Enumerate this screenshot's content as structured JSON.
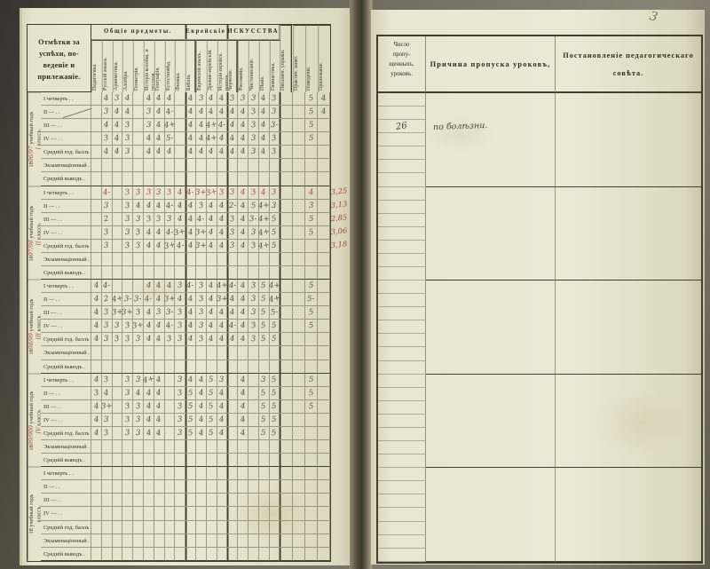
{
  "left": {
    "title": "Отмѣтки за успѣхи, по-\nведеніе и прилежаніе.",
    "groups": [
      {
        "label": "Общіе предметы.",
        "span": 9
      },
      {
        "label": "Еврейскіе предм.",
        "span": 4
      },
      {
        "label": "ИСКУССТВА.",
        "span": 5
      }
    ],
    "columns": [
      "Педагогика.",
      "Русскій языкъ.",
      "Ариѳметика.",
      "Алгебра.",
      "Геометрія.",
      "Исторія всеобщ. и русская.",
      "Географія.",
      "Естествовѣд.",
      "Физика.",
      "Библія.",
      "Еврейскій языкъ.",
      "Древне-еврейскій.",
      "Исторія еврейск. народа.",
      "Черченіе.",
      "Рисованіе.",
      "Чистописаніе.",
      "Пѣніе.",
      "Гимнастика.",
      "Письмен. упражн.",
      "Практич. занят.",
      "Поведеніе.",
      "Прилежаніе."
    ],
    "row_labels": [
      "I четверть .  .",
      "II  —  .  .",
      "III  —  .  .",
      "IV  —  .  .",
      "Средній год. баллъ .",
      "Экзаменаціонный .",
      "Средній выводъ ."
    ],
    "year_prefix": "18",
    "year_suffix": " учебный годъ",
    "class_suffix": " классъ.",
    "blocks": [
      {
        "year": "96/97",
        "cls": "I",
        "red_rows": [],
        "rows": [
          [
            "",
            "4",
            "3",
            "4",
            "",
            "4",
            "4",
            "4",
            "",
            "4",
            "3",
            "4",
            "4",
            "3",
            "3",
            "3",
            "4",
            "3",
            "",
            "",
            "5",
            "4"
          ],
          [
            "",
            "3",
            "4",
            "4",
            "",
            "3",
            "4",
            "4-",
            "",
            "4",
            "4",
            "4",
            "4",
            "4",
            "4",
            "3",
            "4",
            "3",
            "",
            "",
            "5",
            "4"
          ],
          [
            "",
            "4",
            "4",
            "3",
            "",
            "3",
            "4",
            "4+",
            "",
            "4",
            "4",
            "4+",
            "4-",
            "4",
            "4",
            "3",
            "4",
            "3-",
            "",
            "",
            "5",
            ""
          ],
          [
            "",
            "3",
            "4",
            "3",
            "",
            "4",
            "4",
            "5-",
            "",
            "4",
            "4",
            "4+",
            "4",
            "4",
            "4",
            "3",
            "4",
            "3",
            "",
            "",
            "5",
            ""
          ],
          [
            "",
            "4",
            "4",
            "3",
            "",
            "4",
            "4",
            "4",
            "",
            "4",
            "4",
            "4",
            "4",
            "4",
            "4",
            "3",
            "4",
            "3",
            "",
            "",
            "",
            ""
          ]
        ]
      },
      {
        "year": "97/98",
        "cls": "II",
        "red_rows": [
          0
        ],
        "rows": [
          [
            "",
            "4-",
            "",
            "3",
            "3",
            "3",
            "3",
            "3",
            "4",
            "4-",
            "3+",
            "3+",
            "3",
            "3",
            "4",
            "3",
            "4",
            "3",
            "",
            "",
            "4",
            ""
          ],
          [
            "",
            "3",
            "",
            "3",
            "4",
            "4",
            "4",
            "4-",
            "4",
            "4",
            "3",
            "4",
            "4",
            "2-",
            "4",
            "5",
            "4+",
            "3",
            "",
            "",
            "3",
            ""
          ],
          [
            "",
            "2",
            "",
            "3",
            "3",
            "3",
            "3",
            "3",
            "4",
            "4",
            "4-",
            "4",
            "4",
            "3",
            "4",
            "3-",
            "4+",
            "5",
            "",
            "",
            "5",
            ""
          ],
          [
            "",
            "3",
            "",
            "3",
            "3",
            "4",
            "4",
            "4-",
            "3+",
            "4",
            "3+",
            "4",
            "4",
            "3",
            "4",
            "3",
            "4+",
            "5",
            "",
            "",
            "5",
            ""
          ],
          [
            "",
            "3",
            "",
            "3",
            "3",
            "4",
            "4",
            "3+",
            "4-",
            "4",
            "3+",
            "4",
            "4",
            "3",
            "4",
            "3",
            "4+",
            "5",
            "",
            "",
            "",
            ""
          ]
        ]
      },
      {
        "year": "98/99",
        "cls": "III",
        "red_rows": [],
        "rows": [
          [
            "4",
            "4-",
            "",
            "",
            "",
            "4",
            "4",
            "4",
            "3",
            "4-",
            "3",
            "4",
            "4+",
            "4-",
            "4",
            "3",
            "5",
            "4+",
            "",
            "",
            "5",
            ""
          ],
          [
            "4",
            "2",
            "4+",
            "3-",
            "3-",
            "4-",
            "4",
            "3+",
            "4",
            "4",
            "3",
            "4",
            "3+",
            "4",
            "4",
            "3",
            "5",
            "4+",
            "",
            "",
            "5-",
            ""
          ],
          [
            "4",
            "3",
            "3+",
            "3+",
            "3",
            "4",
            "3",
            "3-",
            "3",
            "4",
            "3",
            "4",
            "4",
            "4",
            "4",
            "3",
            "5",
            "5-",
            "",
            "",
            "5",
            ""
          ],
          [
            "4",
            "3",
            "3",
            "3",
            "3+",
            "4",
            "4",
            "4-",
            "3",
            "4",
            "3",
            "4",
            "4",
            "4-",
            "4",
            "3",
            "5",
            "5",
            "",
            "",
            "5",
            ""
          ],
          [
            "4",
            "3",
            "3",
            "3",
            "3",
            "4",
            "4",
            "3",
            "3",
            "4",
            "3",
            "4",
            "4",
            "4",
            "4",
            "3",
            "5",
            "5",
            "",
            "",
            "",
            ""
          ]
        ]
      },
      {
        "year": "99/900",
        "cls": "IV",
        "red_rows": [],
        "rows": [
          [
            "4",
            "3",
            "",
            "3",
            "3",
            "4+",
            "4",
            "",
            "3",
            "4",
            "4",
            "5",
            "3",
            "",
            "4",
            "",
            "3",
            "5",
            "",
            "",
            "5",
            ""
          ],
          [
            "3",
            "4",
            "",
            "3",
            "4",
            "4",
            "4",
            "",
            "3",
            "5",
            "4",
            "5",
            "4",
            "",
            "4",
            "",
            "5",
            "5",
            "",
            "",
            "5",
            ""
          ],
          [
            "4",
            "3+",
            "",
            "3",
            "3",
            "4",
            "4",
            "",
            "3",
            "5",
            "4",
            "5",
            "4",
            "",
            "4",
            "",
            "5",
            "5",
            "",
            "",
            "5",
            ""
          ],
          [
            "4",
            "3",
            "",
            "3",
            "3",
            "4",
            "4",
            "",
            "3",
            "5",
            "4",
            "5",
            "4",
            "",
            "4",
            "",
            "5",
            "5",
            "",
            "",
            "",
            ""
          ],
          [
            "4",
            "3",
            "",
            "3",
            "3",
            "4",
            "4",
            "",
            "3",
            "5",
            "4",
            "5",
            "4",
            "",
            "4",
            "",
            "5",
            "5",
            "",
            "",
            "",
            ""
          ]
        ]
      },
      {
        "year": "",
        "cls": "",
        "red_rows": [],
        "rows": []
      }
    ],
    "margin_averages": {
      "block": 1,
      "values": [
        "3,25",
        "3,13",
        "2,85",
        "3,06",
        "3,18"
      ]
    }
  },
  "right": {
    "page_number": "3",
    "col1_header": "Число\nпропу-\nщенныхъ.\nуроковъ.",
    "col2_header": "Причина пропуска уроковъ,",
    "col3_header": "Постановленіе педагогическаго\nсовѣта.",
    "entry": {
      "block": 0,
      "row": 2,
      "count": "26",
      "reason": "по болѣзни."
    }
  }
}
